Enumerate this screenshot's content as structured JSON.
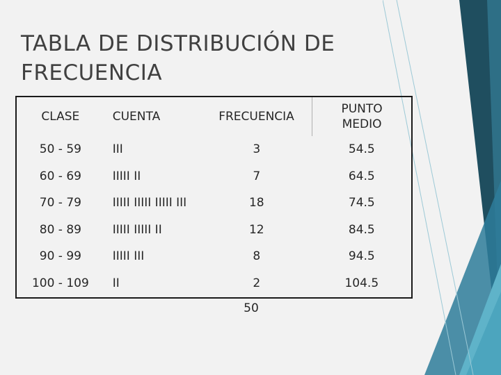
{
  "slide": {
    "title_line1": "TABLA DE DISTRIBUCIÓN DE",
    "title_line2": "FRECUENCIA"
  },
  "table": {
    "headers": {
      "clase": "CLASE",
      "cuenta": "CUENTA",
      "frecuencia": "FRECUENCIA",
      "punto_medio_line1": "PUNTO",
      "punto_medio_line2": "MEDIO"
    },
    "rows": [
      {
        "clase": "50 - 59",
        "cuenta": "III",
        "frecuencia": "3",
        "punto_medio": "54.5"
      },
      {
        "clase": "60 - 69",
        "cuenta": "IIIII II",
        "frecuencia": "7",
        "punto_medio": "64.5"
      },
      {
        "clase": "70 - 79",
        "cuenta": "IIIII IIIII IIIII III",
        "frecuencia": "18",
        "punto_medio": "74.5"
      },
      {
        "clase": "80 - 89",
        "cuenta": "IIIII IIIII II",
        "frecuencia": "12",
        "punto_medio": "84.5"
      },
      {
        "clase": "90 - 99",
        "cuenta": "IIIII III",
        "frecuencia": "8",
        "punto_medio": "94.5"
      },
      {
        "clase": "100 - 109",
        "cuenta": "II",
        "frecuencia": "2",
        "punto_medio": "104.5"
      }
    ],
    "total_frecuencia": "50"
  },
  "colors": {
    "background": "#f2f2f2",
    "accent_dark": "#1f4e5f",
    "accent_mid": "#2e7d9a",
    "accent_light": "#5fb3c9"
  }
}
